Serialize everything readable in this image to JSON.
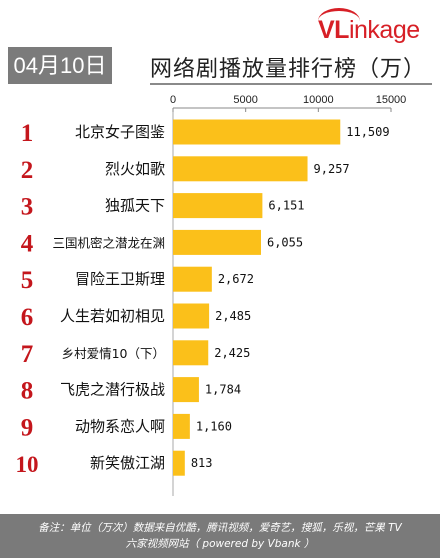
{
  "header": {
    "logo_v": "VL",
    "logo_rest": "inkage",
    "date": "04月10日",
    "title": "网络剧播放量排行榜（万）"
  },
  "footer": {
    "line1": "备注：单位（万次）数据来自优酷，腾讯视频，爱奇艺，搜狐，乐视，芒果 TV",
    "line2": "六家视频网站（ powered by Vbank ）"
  },
  "colors": {
    "bar": "#fbc01a",
    "rank": "#c4161c",
    "footer_bg": "#7a7a7a",
    "badge_bg": "#7b7b7b"
  },
  "chart_data": {
    "type": "bar",
    "orientation": "horizontal",
    "title": "网络剧播放量排行榜（万）",
    "xlim": [
      0,
      15000
    ],
    "xticks": [
      0,
      5000,
      10000,
      15000
    ],
    "tick_labels": [
      "0",
      "5000",
      "10000",
      "15000"
    ],
    "ranks": [
      "1",
      "2",
      "3",
      "4",
      "5",
      "6",
      "7",
      "8",
      "9",
      "10"
    ],
    "categories": [
      "北京女子图鉴",
      "烈火如歌",
      "独孤天下",
      "三国机密之潜龙在渊",
      "冒险王卫斯理",
      "人生若如初相见",
      "乡村爱情10（下）",
      "飞虎之潜行极战",
      "动物系恋人啊",
      "新笑傲江湖"
    ],
    "values": [
      11509,
      9257,
      6151,
      6055,
      2672,
      2485,
      2425,
      1784,
      1160,
      813
    ],
    "value_labels": [
      "11,509",
      "9,257",
      "6,151",
      "6,055",
      "2,672",
      "2,485",
      "2,425",
      "1,784",
      "1,160",
      "813"
    ],
    "grid": false
  }
}
